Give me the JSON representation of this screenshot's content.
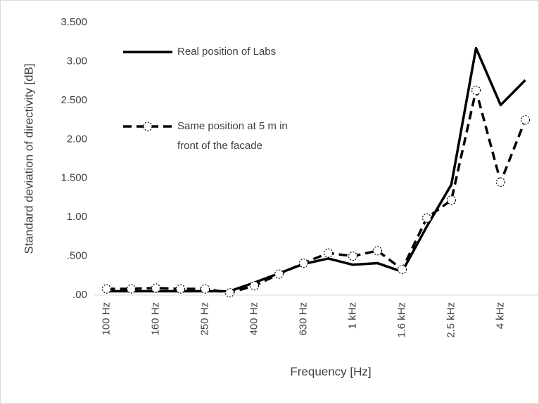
{
  "chart_data": {
    "type": "line",
    "x_label": "Frequency [Hz]",
    "y_label": "Standard deviation of directivity [dB]",
    "categories": [
      "100 Hz",
      null,
      "160 Hz",
      null,
      "250 Hz",
      null,
      "400 Hz",
      null,
      "630 Hz",
      null,
      "1 kHz",
      null,
      "1.6 kHz",
      null,
      "2.5 kHz",
      null,
      "4 kHz",
      null
    ],
    "series": [
      {
        "name": "Real position of Labs",
        "color": "#000000",
        "dashed": false,
        "markers": false,
        "values": [
          0.05,
          0.05,
          0.05,
          0.05,
          0.05,
          0.05,
          0.16,
          0.28,
          0.4,
          0.47,
          0.39,
          0.41,
          0.3,
          0.88,
          1.42,
          3.17,
          2.44,
          2.76
        ]
      },
      {
        "name": "Same position at 5 m in front of the facade",
        "color": "#000000",
        "dashed": true,
        "markers": true,
        "values": [
          0.08,
          0.08,
          0.09,
          0.08,
          0.08,
          0.03,
          0.12,
          0.27,
          0.41,
          0.54,
          0.5,
          0.57,
          0.33,
          0.99,
          1.22,
          2.63,
          1.45,
          2.25
        ]
      }
    ],
    "ylim": [
      0,
      3.5
    ],
    "yticks": [
      {
        "value": 0,
        "label": ".00"
      },
      {
        "value": 0.5,
        "label": ".500"
      },
      {
        "value": 1,
        "label": "1.00"
      },
      {
        "value": 1.5,
        "label": "1.500"
      },
      {
        "value": 2,
        "label": "2.00"
      },
      {
        "value": 2.5,
        "label": "2.500"
      },
      {
        "value": 3,
        "label": "3.00"
      },
      {
        "value": 3.5,
        "label": "3.500"
      }
    ],
    "grid": false
  }
}
